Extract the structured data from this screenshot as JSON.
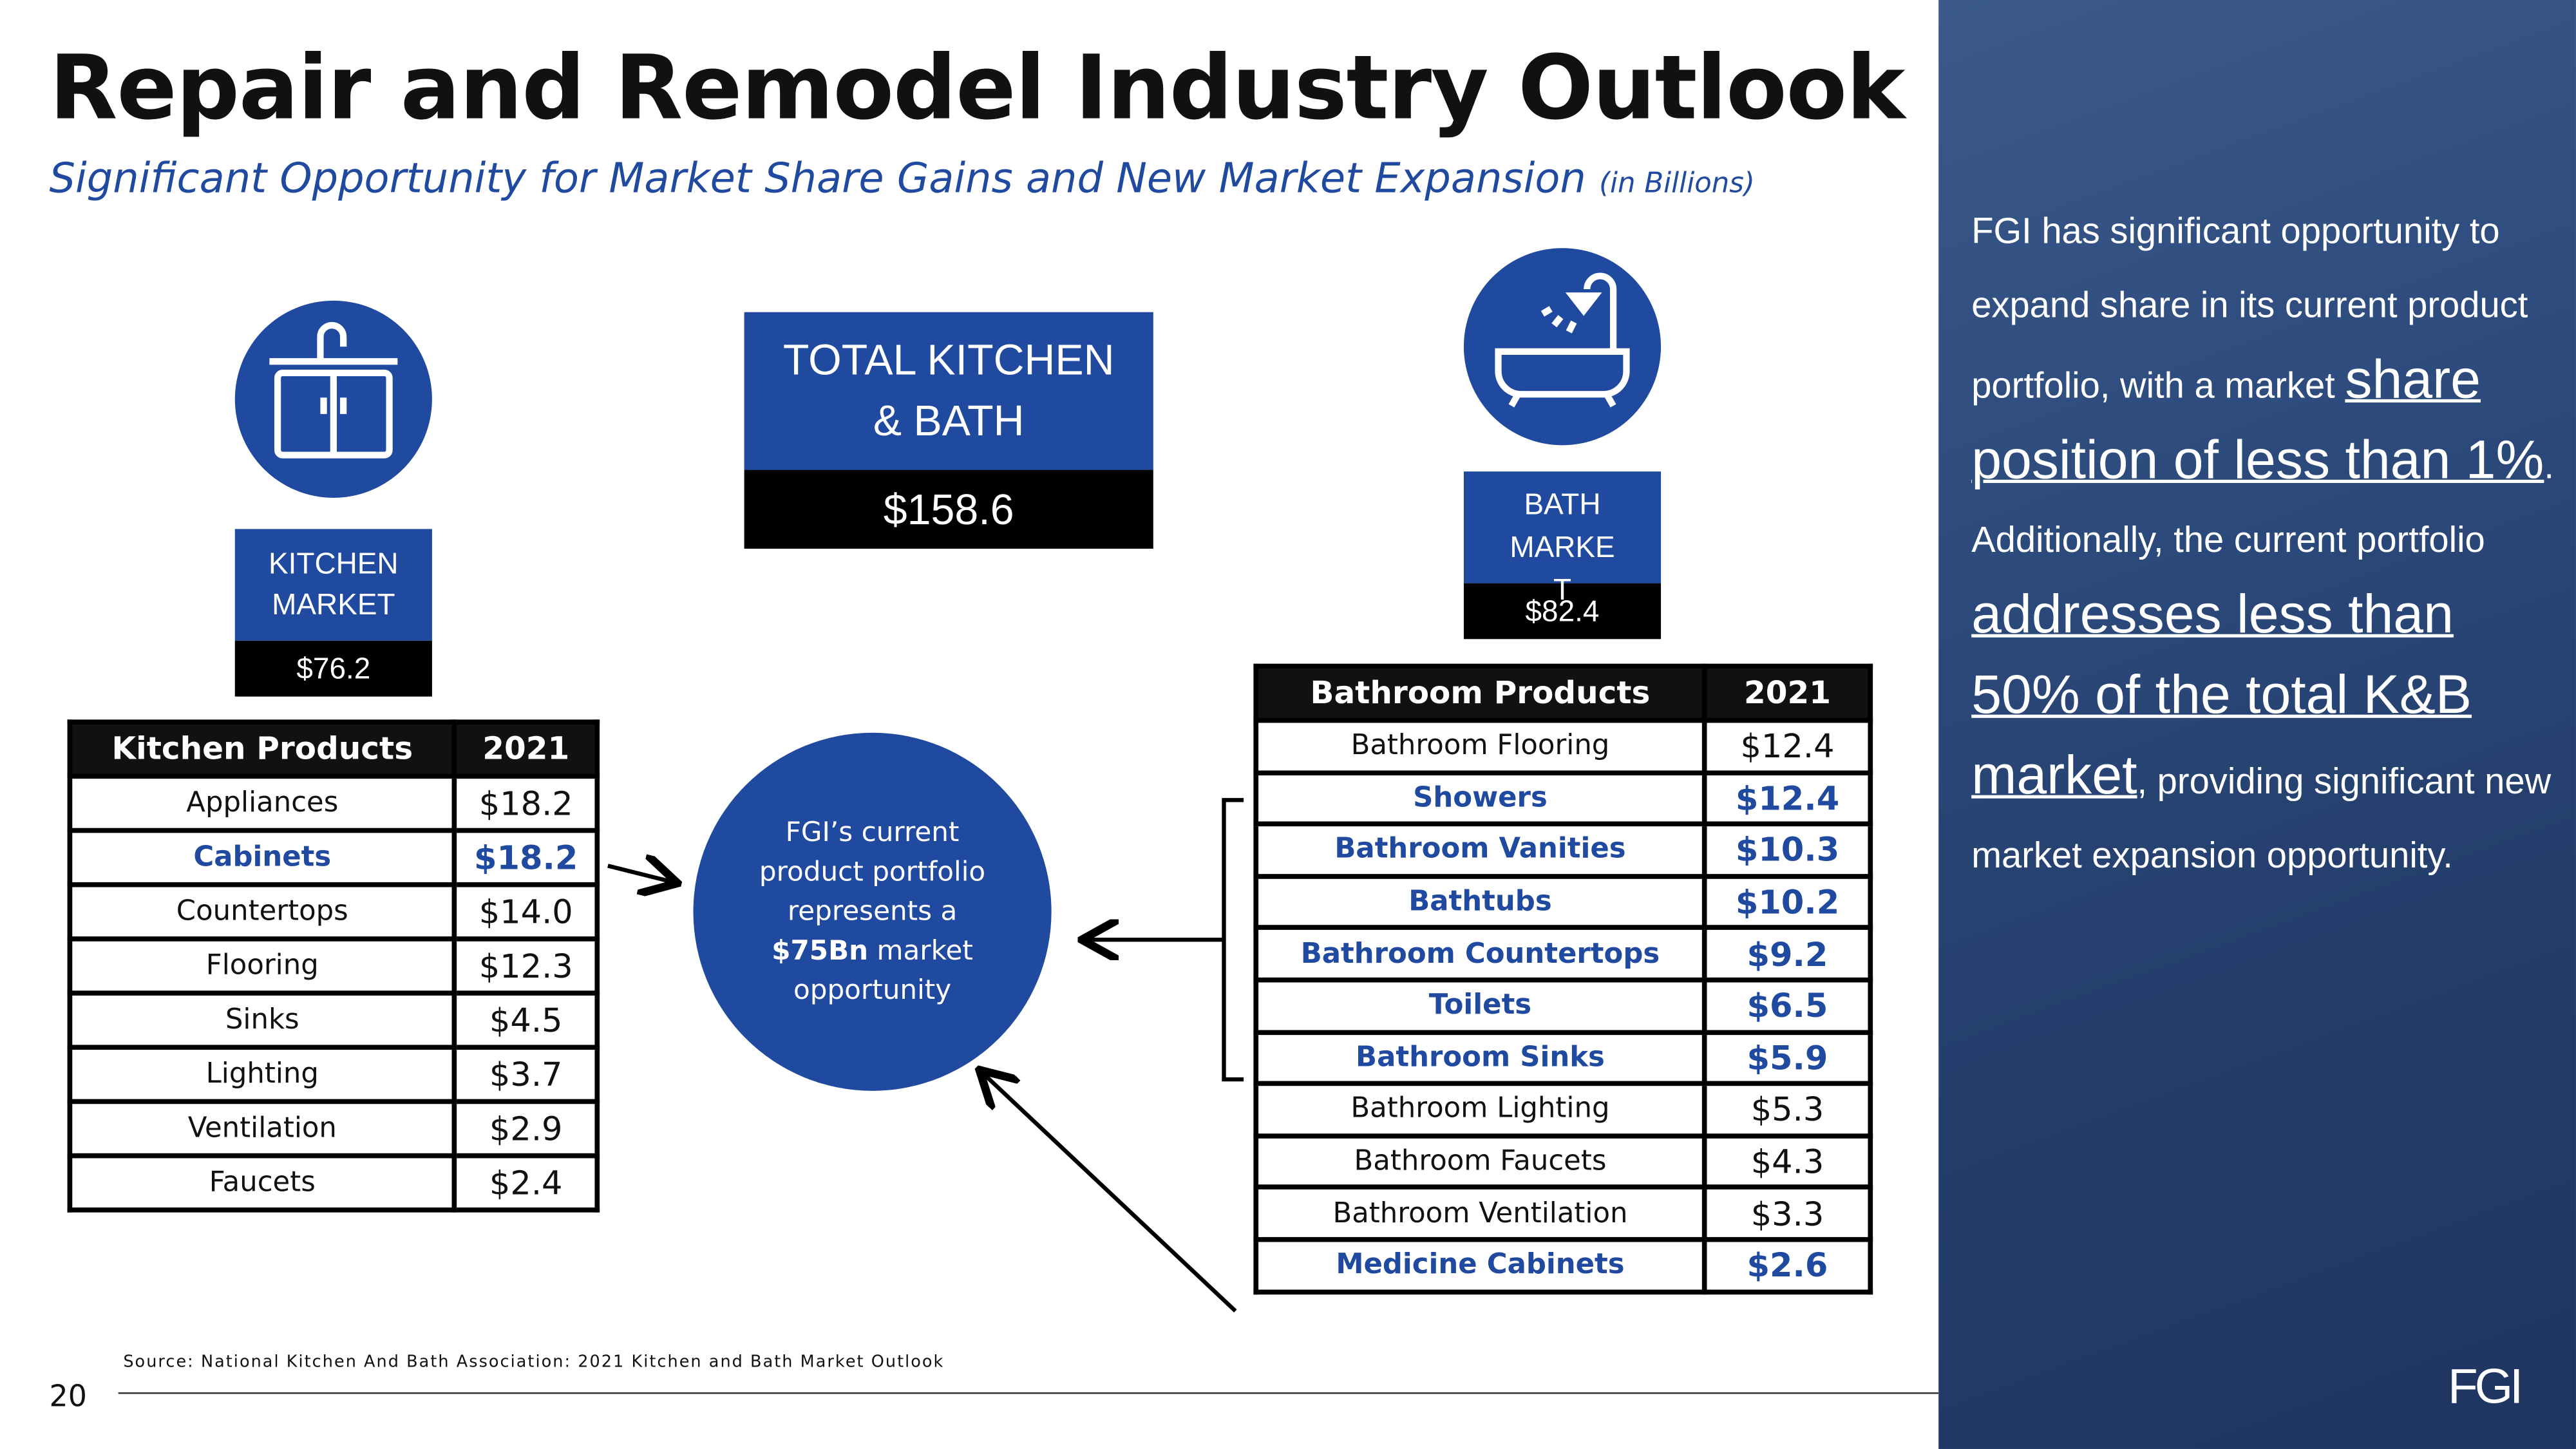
{
  "header": {
    "title": "Repair and Remodel Industry Outlook",
    "subtitle": "Significant Opportunity for Market Share Gains and New Market Expansion",
    "subtitle_note": "(in Billions)"
  },
  "kitchen_market": {
    "label_lines": [
      "KITCHEN",
      "MARKET"
    ],
    "value": "$76.2"
  },
  "total_market": {
    "label_lines": [
      "TOTAL KITCHEN",
      "& BATH"
    ],
    "value": "$158.6"
  },
  "bath_market": {
    "label_lines": [
      "BATH",
      "MARKE",
      "T"
    ],
    "value": "$82.4"
  },
  "kitchen_table": {
    "header": [
      "Kitchen Products",
      "2021"
    ],
    "rows": [
      {
        "product": "Appliances",
        "value": "$18.2",
        "highlight": false
      },
      {
        "product": "Cabinets",
        "value": "$18.2",
        "highlight": true
      },
      {
        "product": "Countertops",
        "value": "$14.0",
        "highlight": false
      },
      {
        "product": "Flooring",
        "value": "$12.3",
        "highlight": false
      },
      {
        "product": "Sinks",
        "value": "$4.5",
        "highlight": false
      },
      {
        "product": "Lighting",
        "value": "$3.7",
        "highlight": false
      },
      {
        "product": "Ventilation",
        "value": "$2.9",
        "highlight": false
      },
      {
        "product": "Faucets",
        "value": "$2.4",
        "highlight": false
      }
    ]
  },
  "bath_table": {
    "header": [
      "Bathroom Products",
      "2021"
    ],
    "rows": [
      {
        "product": "Bathroom Flooring",
        "value": "$12.4",
        "highlight": false
      },
      {
        "product": "Showers",
        "value": "$12.4",
        "highlight": true
      },
      {
        "product": "Bathroom Vanities",
        "value": "$10.3",
        "highlight": true
      },
      {
        "product": "Bathtubs",
        "value": "$10.2",
        "highlight": true
      },
      {
        "product": "Bathroom Countertops",
        "value": "$9.2",
        "highlight": true
      },
      {
        "product": "Toilets",
        "value": "$6.5",
        "highlight": true
      },
      {
        "product": "Bathroom Sinks",
        "value": "$5.9",
        "highlight": true
      },
      {
        "product": "Bathroom Lighting",
        "value": "$5.3",
        "highlight": false
      },
      {
        "product": "Bathroom Faucets",
        "value": "$4.3",
        "highlight": false
      },
      {
        "product": "Bathroom Ventilation",
        "value": "$3.3",
        "highlight": false
      },
      {
        "product": "Medicine Cabinets",
        "value": "$2.6",
        "highlight": true
      }
    ]
  },
  "portfolio_circle": {
    "lines": [
      "FGI’s current",
      "product portfolio",
      "represents a"
    ],
    "bold": "$75Bn",
    "after_bold": " market",
    "last_line": "opportunity"
  },
  "side_panel": {
    "segments": [
      {
        "text": "FGI has significant opportunity to expand share in its current product portfolio, with a market ",
        "emphasis": false
      },
      {
        "text": "share position of less than 1%",
        "emphasis": true
      },
      {
        "text": ".  Additionally, the current portfolio ",
        "emphasis": false
      },
      {
        "text": "addresses less than 50% of the total K&B market",
        "emphasis": true
      },
      {
        "text": ", providing significant new market expansion opportunity.",
        "emphasis": false
      }
    ]
  },
  "footer": {
    "source": "Source: National Kitchen And Bath Association: 2021 Kitchen and Bath Market Outlook",
    "page_number": "20",
    "logo": "FGI"
  }
}
